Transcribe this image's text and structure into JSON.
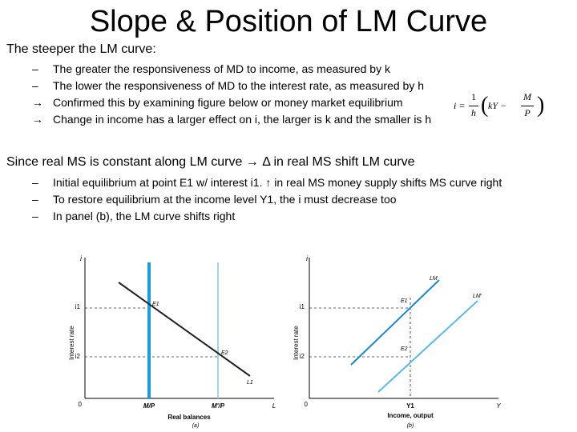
{
  "slide": {
    "title": "Slope & Position of LM Curve",
    "section1": {
      "heading": "The steeper the LM curve:",
      "bullets": [
        {
          "mark": "–",
          "text": "The greater the responsiveness of MD to income, as measured by k"
        },
        {
          "mark": "–",
          "text": "The lower the responsiveness of MD to the interest rate, as measured by h"
        },
        {
          "mark": "→",
          "text": "Confirmed this by examining figure below or money market equilibrium"
        },
        {
          "mark": "→",
          "text": "Change in income has a larger effect on i, the larger is k and the smaller is h"
        }
      ]
    },
    "section2": {
      "heading": "Since real MS is constant along LM curve → Δ in real MS shift LM curve",
      "bullets": [
        {
          "mark": "–",
          "text": "Initial equilibrium at point E1 w/ interest i1. ↑ in real MS money supply shifts MS curve right"
        },
        {
          "mark": "–",
          "text": "To restore equilibrium at the income level Y1, the i must decrease too"
        },
        {
          "mark": "–",
          "text": "In panel (b), the LM curve shifts right"
        }
      ]
    },
    "formula": {
      "lhs": "i =",
      "frac1_num": "1",
      "frac1_den": "h",
      "mid": "kY −",
      "frac2_num": "M",
      "frac2_den": "P"
    }
  },
  "panel_a": {
    "y_axis_symbol": "i",
    "y_axis_title": "Interest rate",
    "tick_i1": "i1",
    "tick_i2": "i2",
    "origin": "0",
    "x_tick_1": "M/P",
    "x_tick_2": "M'/P",
    "x_axis_end": "L",
    "x_axis_title": "Real balances",
    "caption": "(a)",
    "point_1": "E1",
    "point_2": "E2",
    "curve_label": "L1",
    "colors": {
      "ms_old": "#1e9ad6",
      "ms_new": "#9fd3ea",
      "demand": "#222222"
    }
  },
  "panel_b": {
    "y_axis_symbol": "i",
    "y_axis_title": "Interest rate",
    "tick_i1": "i1",
    "tick_i2": "i2",
    "origin": "0",
    "x_tick": "Y1",
    "x_axis_end": "Y",
    "x_axis_title": "Income, output",
    "caption": "(b)",
    "curve_old": "LM",
    "curve_new": "LM'",
    "point_1": "E1",
    "point_2": "E2",
    "colors": {
      "lm_old": "#1e86c8",
      "lm_new": "#5cb8e6"
    }
  }
}
